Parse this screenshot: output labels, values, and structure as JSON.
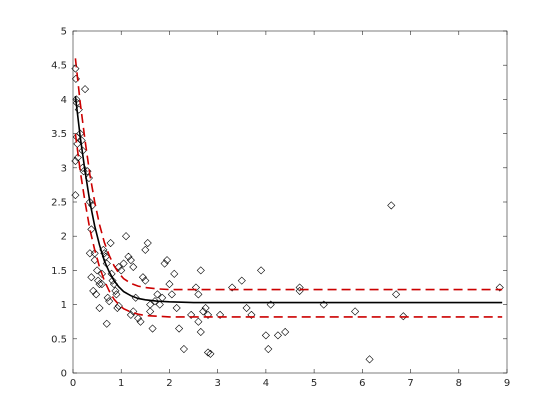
{
  "chart_data": {
    "type": "scatter",
    "xlim": [
      0,
      9
    ],
    "ylim": [
      0,
      5
    ],
    "x_ticks": [
      "0",
      "1",
      "2",
      "3",
      "4",
      "5",
      "6",
      "7",
      "8",
      "9"
    ],
    "y_ticks": [
      "0",
      "0.5",
      "1",
      "1.5",
      "2",
      "2.5",
      "3",
      "3.5",
      "4",
      "4.5",
      "5"
    ],
    "grid": false,
    "box": true,
    "series": [
      {
        "kind": "scatter",
        "marker": "diamond",
        "color": "#000000",
        "points": [
          [
            0.05,
            4.45
          ],
          [
            0.06,
            4.3
          ],
          [
            0.07,
            4.0
          ],
          [
            0.08,
            3.95
          ],
          [
            0.08,
            3.45
          ],
          [
            0.09,
            3.35
          ],
          [
            0.1,
            3.15
          ],
          [
            0.05,
            3.1
          ],
          [
            0.05,
            2.6
          ],
          [
            0.12,
            3.85
          ],
          [
            0.15,
            3.5
          ],
          [
            0.18,
            3.4
          ],
          [
            0.2,
            3.25
          ],
          [
            0.2,
            3.0
          ],
          [
            0.22,
            2.95
          ],
          [
            0.25,
            4.15
          ],
          [
            0.3,
            2.95
          ],
          [
            0.33,
            2.85
          ],
          [
            0.35,
            2.5
          ],
          [
            0.38,
            2.1
          ],
          [
            0.4,
            2.45
          ],
          [
            0.45,
            1.75
          ],
          [
            0.45,
            1.65
          ],
          [
            0.35,
            1.75
          ],
          [
            0.38,
            1.4
          ],
          [
            0.42,
            1.2
          ],
          [
            0.48,
            1.15
          ],
          [
            0.5,
            1.5
          ],
          [
            0.52,
            1.35
          ],
          [
            0.55,
            1.3
          ],
          [
            0.6,
            1.45
          ],
          [
            0.6,
            1.3
          ],
          [
            0.63,
            1.8
          ],
          [
            0.65,
            1.75
          ],
          [
            0.68,
            1.7
          ],
          [
            0.7,
            1.6
          ],
          [
            0.72,
            1.1
          ],
          [
            0.75,
            1.05
          ],
          [
            0.55,
            0.95
          ],
          [
            0.78,
            1.9
          ],
          [
            0.8,
            1.45
          ],
          [
            0.82,
            1.35
          ],
          [
            0.85,
            1.3
          ],
          [
            0.88,
            1.2
          ],
          [
            0.9,
            1.15
          ],
          [
            0.92,
            0.95
          ],
          [
            0.95,
            0.98
          ],
          [
            0.95,
            1.55
          ],
          [
            1.0,
            1.5
          ],
          [
            1.05,
            1.6
          ],
          [
            1.1,
            2.0
          ],
          [
            1.15,
            1.7
          ],
          [
            1.2,
            1.65
          ],
          [
            1.25,
            1.55
          ],
          [
            1.2,
            0.85
          ],
          [
            1.25,
            0.9
          ],
          [
            1.3,
            1.1
          ],
          [
            1.35,
            0.8
          ],
          [
            1.4,
            0.75
          ],
          [
            1.45,
            1.4
          ],
          [
            1.5,
            1.35
          ],
          [
            1.5,
            1.8
          ],
          [
            1.55,
            1.9
          ],
          [
            1.6,
            1.0
          ],
          [
            1.6,
            0.9
          ],
          [
            1.65,
            0.65
          ],
          [
            1.7,
            1.05
          ],
          [
            1.75,
            1.15
          ],
          [
            1.8,
            1.0
          ],
          [
            1.85,
            1.1
          ],
          [
            1.9,
            1.6
          ],
          [
            1.95,
            1.65
          ],
          [
            0.7,
            0.72
          ],
          [
            2.0,
            1.3
          ],
          [
            2.05,
            1.15
          ],
          [
            2.1,
            1.45
          ],
          [
            2.15,
            0.95
          ],
          [
            2.2,
            0.65
          ],
          [
            2.3,
            0.35
          ],
          [
            2.45,
            0.85
          ],
          [
            2.55,
            1.25
          ],
          [
            2.6,
            1.15
          ],
          [
            2.6,
            0.75
          ],
          [
            2.65,
            0.6
          ],
          [
            2.7,
            0.9
          ],
          [
            2.75,
            0.95
          ],
          [
            2.8,
            0.85
          ],
          [
            2.8,
            0.3
          ],
          [
            2.85,
            0.28
          ],
          [
            2.65,
            1.5
          ],
          [
            3.05,
            0.85
          ],
          [
            3.3,
            1.25
          ],
          [
            3.5,
            1.35
          ],
          [
            3.6,
            0.95
          ],
          [
            3.7,
            0.85
          ],
          [
            3.9,
            1.5
          ],
          [
            4.0,
            0.55
          ],
          [
            4.05,
            0.35
          ],
          [
            4.1,
            1.0
          ],
          [
            4.25,
            0.55
          ],
          [
            4.4,
            0.6
          ],
          [
            4.7,
            1.25
          ],
          [
            4.7,
            1.2
          ],
          [
            5.2,
            1.0
          ],
          [
            5.85,
            0.9
          ],
          [
            6.15,
            0.2
          ],
          [
            6.6,
            2.45
          ],
          [
            6.7,
            1.15
          ],
          [
            6.85,
            0.83
          ],
          [
            8.85,
            1.25
          ]
        ]
      },
      {
        "kind": "line",
        "style": "solid",
        "color": "#000000",
        "points": [
          [
            0.05,
            4.05
          ],
          [
            0.15,
            3.45
          ],
          [
            0.25,
            2.95
          ],
          [
            0.35,
            2.5
          ],
          [
            0.45,
            2.15
          ],
          [
            0.55,
            1.87
          ],
          [
            0.65,
            1.64
          ],
          [
            0.75,
            1.48
          ],
          [
            0.85,
            1.35
          ],
          [
            0.95,
            1.26
          ],
          [
            1.05,
            1.19
          ],
          [
            1.2,
            1.13
          ],
          [
            1.35,
            1.09
          ],
          [
            1.5,
            1.07
          ],
          [
            1.75,
            1.05
          ],
          [
            2.0,
            1.04
          ],
          [
            2.5,
            1.03
          ],
          [
            4.0,
            1.03
          ],
          [
            6.0,
            1.03
          ],
          [
            8.9,
            1.03
          ]
        ]
      },
      {
        "kind": "line",
        "style": "dashed",
        "color": "#cc0000",
        "points": [
          [
            0.05,
            4.6
          ],
          [
            0.15,
            3.95
          ],
          [
            0.25,
            3.4
          ],
          [
            0.35,
            2.9
          ],
          [
            0.45,
            2.5
          ],
          [
            0.55,
            2.17
          ],
          [
            0.65,
            1.91
          ],
          [
            0.75,
            1.72
          ],
          [
            0.85,
            1.57
          ],
          [
            0.95,
            1.46
          ],
          [
            1.05,
            1.38
          ],
          [
            1.2,
            1.31
          ],
          [
            1.35,
            1.27
          ],
          [
            1.5,
            1.25
          ],
          [
            1.75,
            1.23
          ],
          [
            2.0,
            1.22
          ],
          [
            3.0,
            1.22
          ],
          [
            6.0,
            1.22
          ],
          [
            8.9,
            1.22
          ]
        ]
      },
      {
        "kind": "line",
        "style": "dashed",
        "color": "#cc0000",
        "points": [
          [
            0.05,
            3.5
          ],
          [
            0.15,
            2.95
          ],
          [
            0.25,
            2.5
          ],
          [
            0.35,
            2.1
          ],
          [
            0.45,
            1.8
          ],
          [
            0.55,
            1.55
          ],
          [
            0.65,
            1.35
          ],
          [
            0.75,
            1.2
          ],
          [
            0.85,
            1.08
          ],
          [
            0.95,
            1.0
          ],
          [
            1.05,
            0.94
          ],
          [
            1.2,
            0.89
          ],
          [
            1.35,
            0.86
          ],
          [
            1.5,
            0.84
          ],
          [
            1.75,
            0.83
          ],
          [
            2.0,
            0.82
          ],
          [
            3.0,
            0.82
          ],
          [
            6.0,
            0.82
          ],
          [
            8.9,
            0.82
          ]
        ]
      }
    ]
  }
}
